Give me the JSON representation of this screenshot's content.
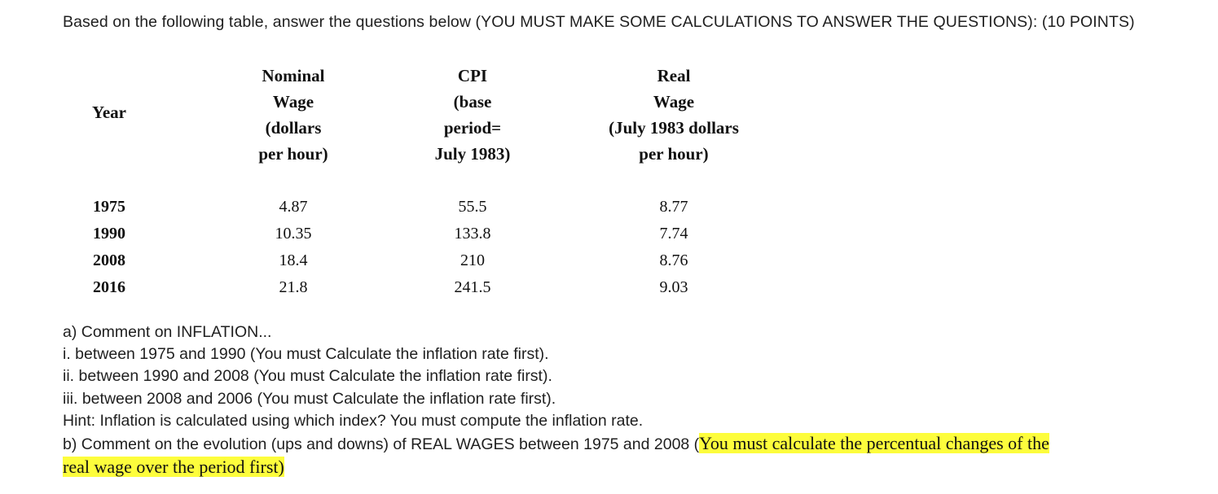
{
  "intro": "Based on the following table, answer the questions below (YOU MUST MAKE SOME CALCULATIONS TO ANSWER THE QUESTIONS): (10 POINTS)",
  "table": {
    "year_header": "Year",
    "nominal_header": [
      "Nominal",
      "Wage",
      "(dollars",
      "per hour)"
    ],
    "cpi_header": [
      "CPI",
      "(base",
      "period=",
      "July 1983)"
    ],
    "real_header": [
      "Real",
      "Wage",
      "(July 1983 dollars",
      "per hour)"
    ],
    "rows": [
      {
        "year": "1975",
        "nominal": "4.87",
        "cpi": "55.5",
        "real": "8.77"
      },
      {
        "year": "1990",
        "nominal": "10.35",
        "cpi": "133.8",
        "real": "7.74"
      },
      {
        "year": "2008",
        "nominal": "18.4",
        "cpi": "210",
        "real": "8.76"
      },
      {
        "year": "2016",
        "nominal": "21.8",
        "cpi": "241.5",
        "real": "9.03"
      }
    ]
  },
  "questions": {
    "a": "a) Comment on INFLATION...",
    "a_i": "i. between 1975 and 1990 (You must Calculate the inflation rate first).",
    "a_ii": "ii. between 1990 and 2008 (You must Calculate the inflation rate first).",
    "a_iii": "iii. between 2008 and 2006 (You must Calculate the inflation rate first).",
    "hint": "Hint: Inflation is calculated using which index? You must compute the inflation rate.",
    "b_prefix": "b) Comment on the evolution (ups and downs) of REAL WAGES between 1975 and 2008 (",
    "b_highlight_1": "You must calculate the percentual changes of the",
    "b_highlight_2": "real wage over the period first)"
  },
  "colors": {
    "highlight": "#fdfd3c",
    "text": "#1f1f1f"
  }
}
